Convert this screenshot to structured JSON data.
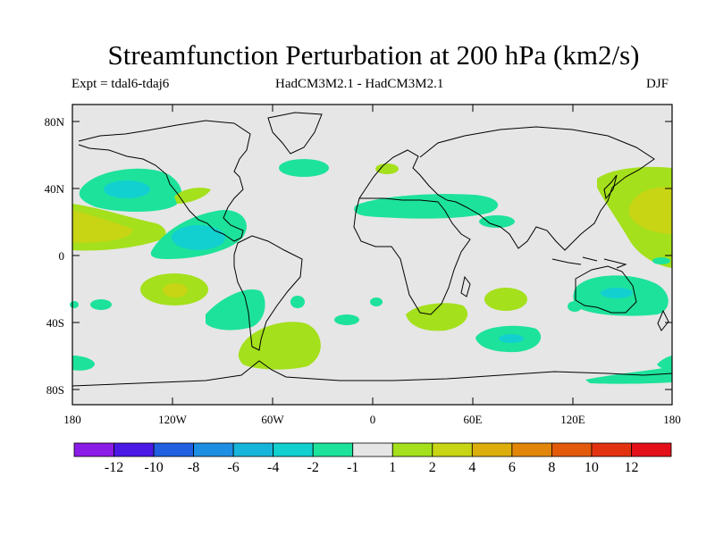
{
  "title": "Streamfunction Perturbation at 200 hPa (km2/s)",
  "subtitle_left": "Expt = tdal6-tdaj6",
  "subtitle_center": "HadCM3M2.1 - HadCM3M2.1",
  "subtitle_right": "DJF",
  "lat_labels": [
    "80N",
    "40N",
    "0",
    "40S",
    "80S"
  ],
  "lon_labels": [
    "180",
    "120W",
    "60W",
    "0",
    "60E",
    "120E",
    "180"
  ],
  "colorbar": {
    "labels": [
      "-12",
      "-10",
      "-8",
      "-6",
      "-4",
      "-2",
      "-1",
      "1",
      "2",
      "4",
      "6",
      "8",
      "10",
      "12"
    ],
    "colors": [
      "#8b1be6",
      "#4a19e6",
      "#1f5fe0",
      "#1d8fe3",
      "#18b5db",
      "#12d0d0",
      "#1de29b",
      "#e6e6e6",
      "#a4e01c",
      "#c7d515",
      "#dcae0c",
      "#e2860a",
      "#e35a0b",
      "#e3320f",
      "#e3101a"
    ]
  },
  "palette": {
    "land_sea_bg": "#e6e6e6",
    "cyan_light": "#1de29b",
    "cyan": "#12d0d0",
    "green": "#a4e01c",
    "yellow": "#c7d515"
  }
}
